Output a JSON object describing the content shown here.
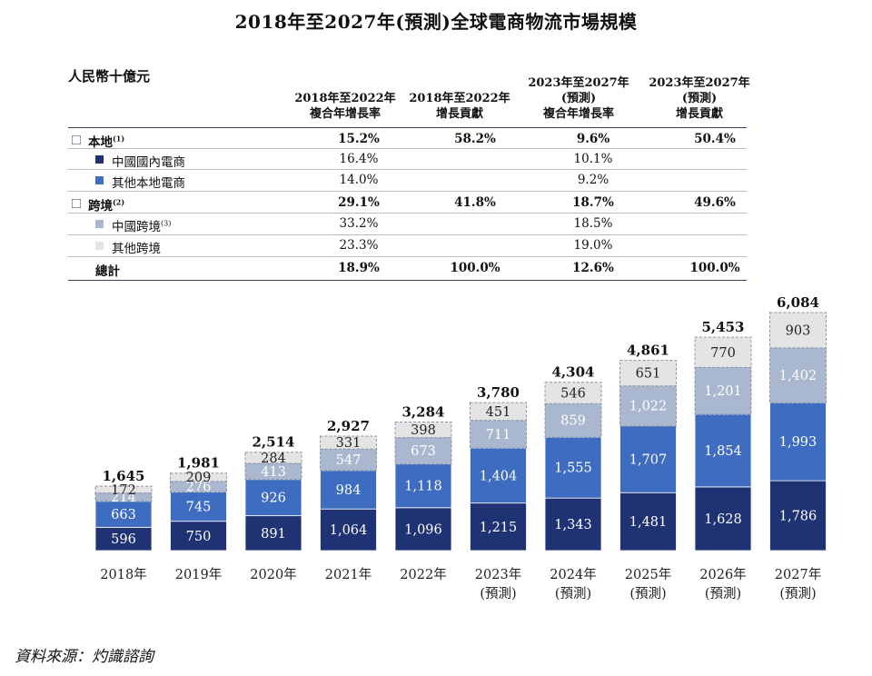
{
  "title": "2018年至2027年(預測)全球電商物流市場規模",
  "table": {
    "unit": "人民幣十億元",
    "col1": [
      "2018年至2022年",
      "複合年增長率"
    ],
    "col2": [
      "2018年至2022年",
      "增長貢獻"
    ],
    "col3": [
      "2023年至2027年",
      "(預測)",
      "複合年增長率"
    ],
    "col4": [
      "2023年至2027年",
      "(預測)",
      "增長貢獻"
    ],
    "rows": [
      {
        "label": "本地",
        "sup": "(1)",
        "c1": "15.2%",
        "c2": "58.2%",
        "c3": "9.6%",
        "c4": "50.4%",
        "bold": true,
        "swatch": "dash"
      },
      {
        "label": "中國國內電商",
        "sup": "",
        "c1": "16.4%",
        "c2": "",
        "c3": "10.1%",
        "c4": "",
        "bold": false,
        "swatch": "#1f3374"
      },
      {
        "label": "其他本地電商",
        "sup": "",
        "c1": "14.0%",
        "c2": "",
        "c3": "9.2%",
        "c4": "",
        "bold": false,
        "swatch": "#3d6cc0"
      },
      {
        "label": "跨境",
        "sup": "(2)",
        "c1": "29.1%",
        "c2": "41.8%",
        "c3": "18.7%",
        "c4": "49.6%",
        "bold": true,
        "swatch": "dash"
      },
      {
        "label": "中國跨境",
        "sup": "(3)",
        "c1": "33.2%",
        "c2": "",
        "c3": "18.5%",
        "c4": "",
        "bold": false,
        "swatch": "#a9b7cf"
      },
      {
        "label": "其他跨境",
        "sup": "",
        "c1": "23.3%",
        "c2": "",
        "c3": "19.0%",
        "c4": "",
        "bold": false,
        "swatch": "#e4e4e4"
      },
      {
        "label": "總計",
        "sup": "",
        "c1": "18.9%",
        "c2": "100.0%",
        "c3": "12.6%",
        "c4": "100.0%",
        "bold": true,
        "swatch": "none"
      }
    ]
  },
  "source": "資料來源：灼識諮詢",
  "colors": {
    "china_domestic": "#1f3374",
    "other_local": "#3d6cc0",
    "china_cross": "#a9b7cf",
    "other_cross": "#e4e4e4"
  },
  "chart_data": {
    "type": "bar",
    "stacked": true,
    "categories": [
      "2018年",
      "2019年",
      "2020年",
      "2021年",
      "2022年",
      "2023年",
      "2024年",
      "2025年",
      "2026年",
      "2027年"
    ],
    "category_sublabels": [
      "",
      "",
      "",
      "",
      "",
      "(預測)",
      "(預測)",
      "(預測)",
      "(預測)",
      "(預測)"
    ],
    "series": [
      {
        "name": "中國國內電商",
        "values": [
          596,
          750,
          891,
          1064,
          1096,
          1215,
          1343,
          1481,
          1628,
          1786
        ]
      },
      {
        "name": "其他本地電商",
        "values": [
          663,
          745,
          926,
          984,
          1118,
          1404,
          1555,
          1707,
          1854,
          1993
        ]
      },
      {
        "name": "中國跨境",
        "values": [
          214,
          276,
          413,
          547,
          673,
          711,
          859,
          1022,
          1201,
          1402
        ]
      },
      {
        "name": "其他跨境",
        "values": [
          172,
          209,
          284,
          331,
          398,
          451,
          546,
          651,
          770,
          903
        ]
      }
    ],
    "value_labels": [
      [
        "596",
        "750",
        "891",
        "1,064",
        "1,096",
        "1,215",
        "1,343",
        "1,481",
        "1,628",
        "1,786"
      ],
      [
        "663",
        "745",
        "926",
        "984",
        "1,118",
        "1,404",
        "1,555",
        "1,707",
        "1,854",
        "1,993"
      ],
      [
        "214",
        "276",
        "413",
        "547",
        "673",
        "711",
        "859",
        "1,022",
        "1,201",
        "1,402"
      ],
      [
        "172",
        "209",
        "284",
        "331",
        "398",
        "451",
        "546",
        "651",
        "770",
        "903"
      ]
    ],
    "totals": [
      "1,645",
      "1,981",
      "2,514",
      "2,927",
      "3,284",
      "3,780",
      "4,304",
      "4,861",
      "5,453",
      "6,084"
    ],
    "total_values": [
      1645,
      1981,
      2514,
      2927,
      3284,
      3780,
      4304,
      4861,
      5453,
      6084
    ],
    "ylim": [
      0,
      6084
    ],
    "grid": false,
    "legend": "table above chart"
  }
}
